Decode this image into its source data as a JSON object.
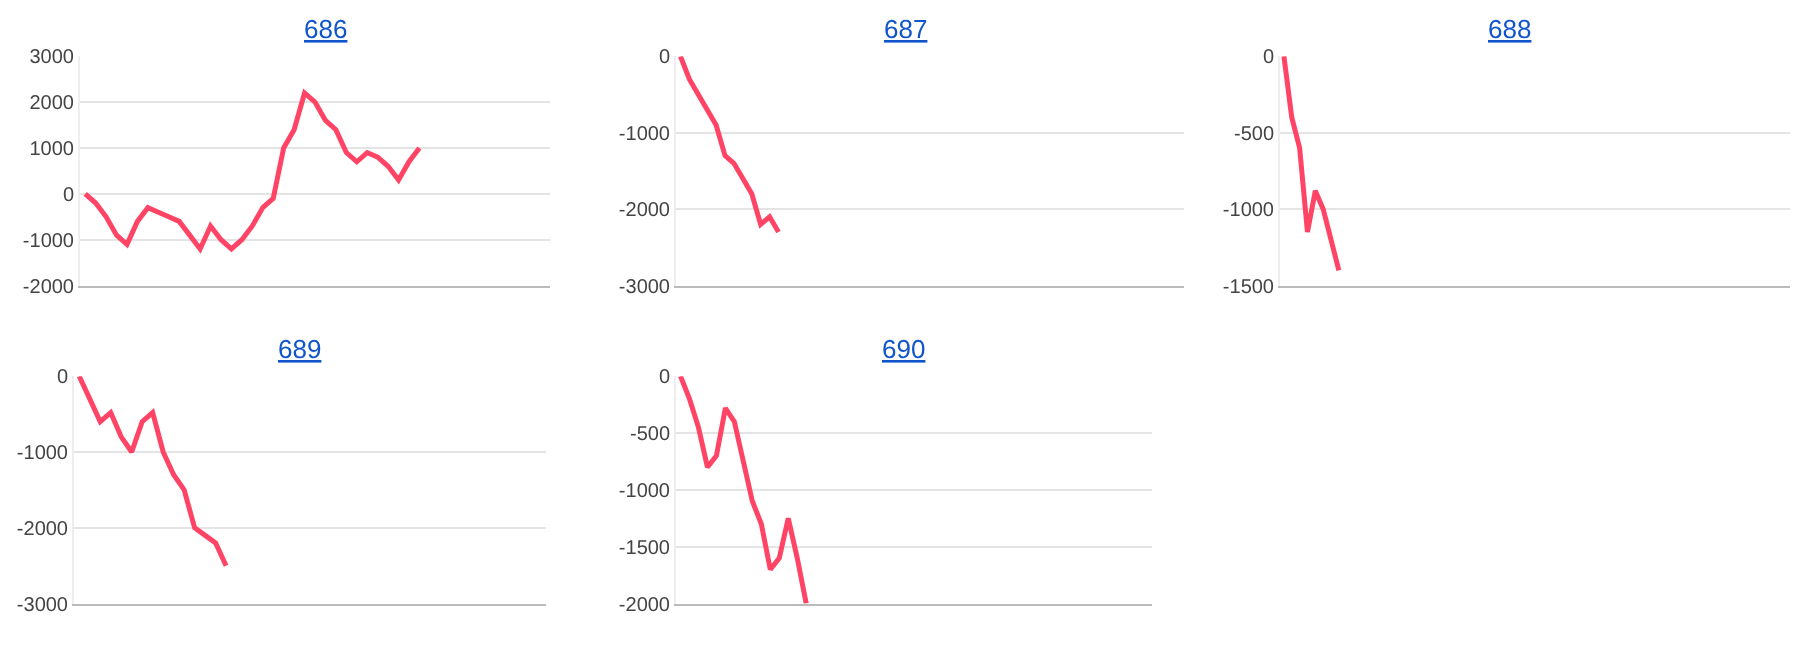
{
  "chart_data": [
    {
      "type": "line",
      "title": "686",
      "color": "#ff4466",
      "ylim": [
        -2000,
        3000
      ],
      "yticks": [
        -2000,
        -1000,
        0,
        1000,
        2000,
        3000
      ],
      "grid": "y",
      "tick_labels": "y",
      "categories": [
        null,
        null,
        null,
        null,
        null,
        null,
        null,
        null,
        null,
        null,
        null,
        null,
        null,
        null,
        null,
        null,
        null,
        null,
        null,
        null,
        null,
        null,
        null,
        null,
        null,
        null,
        null,
        null,
        null,
        null,
        null,
        null,
        null,
        null,
        null,
        null,
        null,
        null,
        null,
        null,
        null,
        null,
        null,
        null,
        null
      ],
      "values": [
        0,
        -200,
        -500,
        -900,
        -1100,
        -600,
        -300,
        -400,
        -500,
        -600,
        -900,
        -1200,
        -700,
        -1000,
        -1200,
        -1000,
        -700,
        -300,
        -100,
        1000,
        1400,
        2200,
        2000,
        1600,
        1400,
        900,
        700,
        900,
        800,
        600,
        300,
        700,
        1000,
        null,
        null,
        null,
        null,
        null,
        null,
        null,
        null,
        null,
        null,
        null,
        null
      ]
    },
    {
      "type": "line",
      "title": "687",
      "color": "#ff4466",
      "ylim": [
        -3000,
        0
      ],
      "yticks": [
        -3000,
        -2000,
        -1000,
        0
      ],
      "grid": "y",
      "tick_labels": "y",
      "categories": [
        null,
        null,
        null,
        null,
        null,
        null,
        null,
        null,
        null,
        null,
        null,
        null,
        null,
        null,
        null,
        null,
        null,
        null,
        null,
        null,
        null,
        null,
        null,
        null,
        null,
        null,
        null,
        null,
        null,
        null,
        null,
        null,
        null,
        null,
        null,
        null,
        null,
        null,
        null,
        null,
        null,
        null,
        null,
        null,
        null,
        null,
        null,
        null,
        null,
        null,
        null,
        null,
        null,
        null,
        null,
        null,
        null
      ],
      "values": [
        0,
        -300,
        -500,
        -700,
        -900,
        -1300,
        -1400,
        -1600,
        -1800,
        -2200,
        -2100,
        -2300,
        null,
        null,
        null,
        null,
        null,
        null,
        null,
        null,
        null,
        null,
        null,
        null,
        null,
        null,
        null,
        null,
        null,
        null,
        null,
        null,
        null,
        null,
        null,
        null,
        null,
        null,
        null,
        null,
        null,
        null,
        null,
        null,
        null,
        null,
        null,
        null,
        null,
        null,
        null,
        null,
        null,
        null,
        null,
        null,
        null
      ]
    },
    {
      "type": "line",
      "title": "688",
      "color": "#ff4466",
      "ylim": [
        -1500,
        0
      ],
      "yticks": [
        -1500,
        -1000,
        -500,
        0
      ],
      "grid": "y",
      "tick_labels": "y",
      "categories": [
        null,
        null,
        null,
        null,
        null,
        null,
        null,
        null,
        null,
        null,
        null,
        null,
        null,
        null,
        null,
        null,
        null,
        null,
        null,
        null,
        null,
        null,
        null,
        null,
        null,
        null,
        null,
        null,
        null,
        null,
        null,
        null,
        null,
        null,
        null,
        null,
        null,
        null,
        null,
        null,
        null,
        null,
        null,
        null,
        null,
        null,
        null,
        null,
        null,
        null,
        null,
        null,
        null,
        null,
        null,
        null,
        null,
        null,
        null,
        null,
        null,
        null,
        null,
        null,
        null
      ],
      "values": [
        0,
        -400,
        -600,
        -1150,
        -880,
        -1000,
        -1200,
        -1400,
        null,
        null,
        null,
        null,
        null,
        null,
        null,
        null,
        null,
        null,
        null,
        null,
        null,
        null,
        null,
        null,
        null,
        null,
        null,
        null,
        null,
        null,
        null,
        null,
        null,
        null,
        null,
        null,
        null,
        null,
        null,
        null,
        null,
        null,
        null,
        null,
        null,
        null,
        null,
        null,
        null,
        null,
        null,
        null,
        null,
        null,
        null,
        null,
        null,
        null,
        null,
        null,
        null,
        null,
        null,
        null,
        null
      ]
    },
    {
      "type": "line",
      "title": "689",
      "color": "#ff4466",
      "ylim": [
        -3000,
        0
      ],
      "yticks": [
        -3000,
        -2000,
        -1000,
        0
      ],
      "grid": "y",
      "tick_labels": "y",
      "categories": [
        null,
        null,
        null,
        null,
        null,
        null,
        null,
        null,
        null,
        null,
        null,
        null,
        null,
        null,
        null,
        null,
        null,
        null,
        null,
        null,
        null,
        null,
        null,
        null,
        null,
        null,
        null,
        null,
        null,
        null,
        null,
        null,
        null,
        null,
        null,
        null,
        null,
        null,
        null,
        null,
        null,
        null,
        null,
        null,
        null
      ],
      "values": [
        0,
        -300,
        -600,
        -480,
        -800,
        -1000,
        -600,
        -480,
        -1000,
        -1300,
        -1500,
        -2000,
        -2100,
        -2200,
        -2500,
        null,
        null,
        null,
        null,
        null,
        null,
        null,
        null,
        null,
        null,
        null,
        null,
        null,
        null,
        null,
        null,
        null,
        null,
        null,
        null,
        null,
        null,
        null,
        null,
        null,
        null,
        null,
        null,
        null,
        null
      ]
    },
    {
      "type": "line",
      "title": "690",
      "color": "#ff4466",
      "ylim": [
        -2000,
        0
      ],
      "yticks": [
        -2000,
        -1500,
        -1000,
        -500,
        0
      ],
      "grid": "y",
      "tick_labels": "y",
      "categories": [
        null,
        null,
        null,
        null,
        null,
        null,
        null,
        null,
        null,
        null,
        null,
        null,
        null,
        null,
        null,
        null,
        null,
        null,
        null,
        null,
        null,
        null,
        null,
        null,
        null,
        null,
        null,
        null,
        null,
        null,
        null,
        null,
        null,
        null,
        null,
        null,
        null,
        null,
        null,
        null,
        null,
        null,
        null,
        null,
        null,
        null,
        null,
        null,
        null,
        null,
        null,
        null,
        null
      ],
      "values": [
        0,
        -200,
        -450,
        -800,
        -700,
        -280,
        -400,
        -750,
        -1100,
        -1300,
        -1700,
        -1600,
        -1250,
        -1600,
        -2000,
        null,
        null,
        null,
        null,
        null,
        null,
        null,
        null,
        null,
        null,
        null,
        null,
        null,
        null,
        null,
        null,
        null,
        null,
        null,
        null,
        null,
        null,
        null,
        null,
        null,
        null,
        null,
        null,
        null,
        null,
        null,
        null,
        null,
        null,
        null,
        null,
        null,
        null
      ]
    }
  ]
}
